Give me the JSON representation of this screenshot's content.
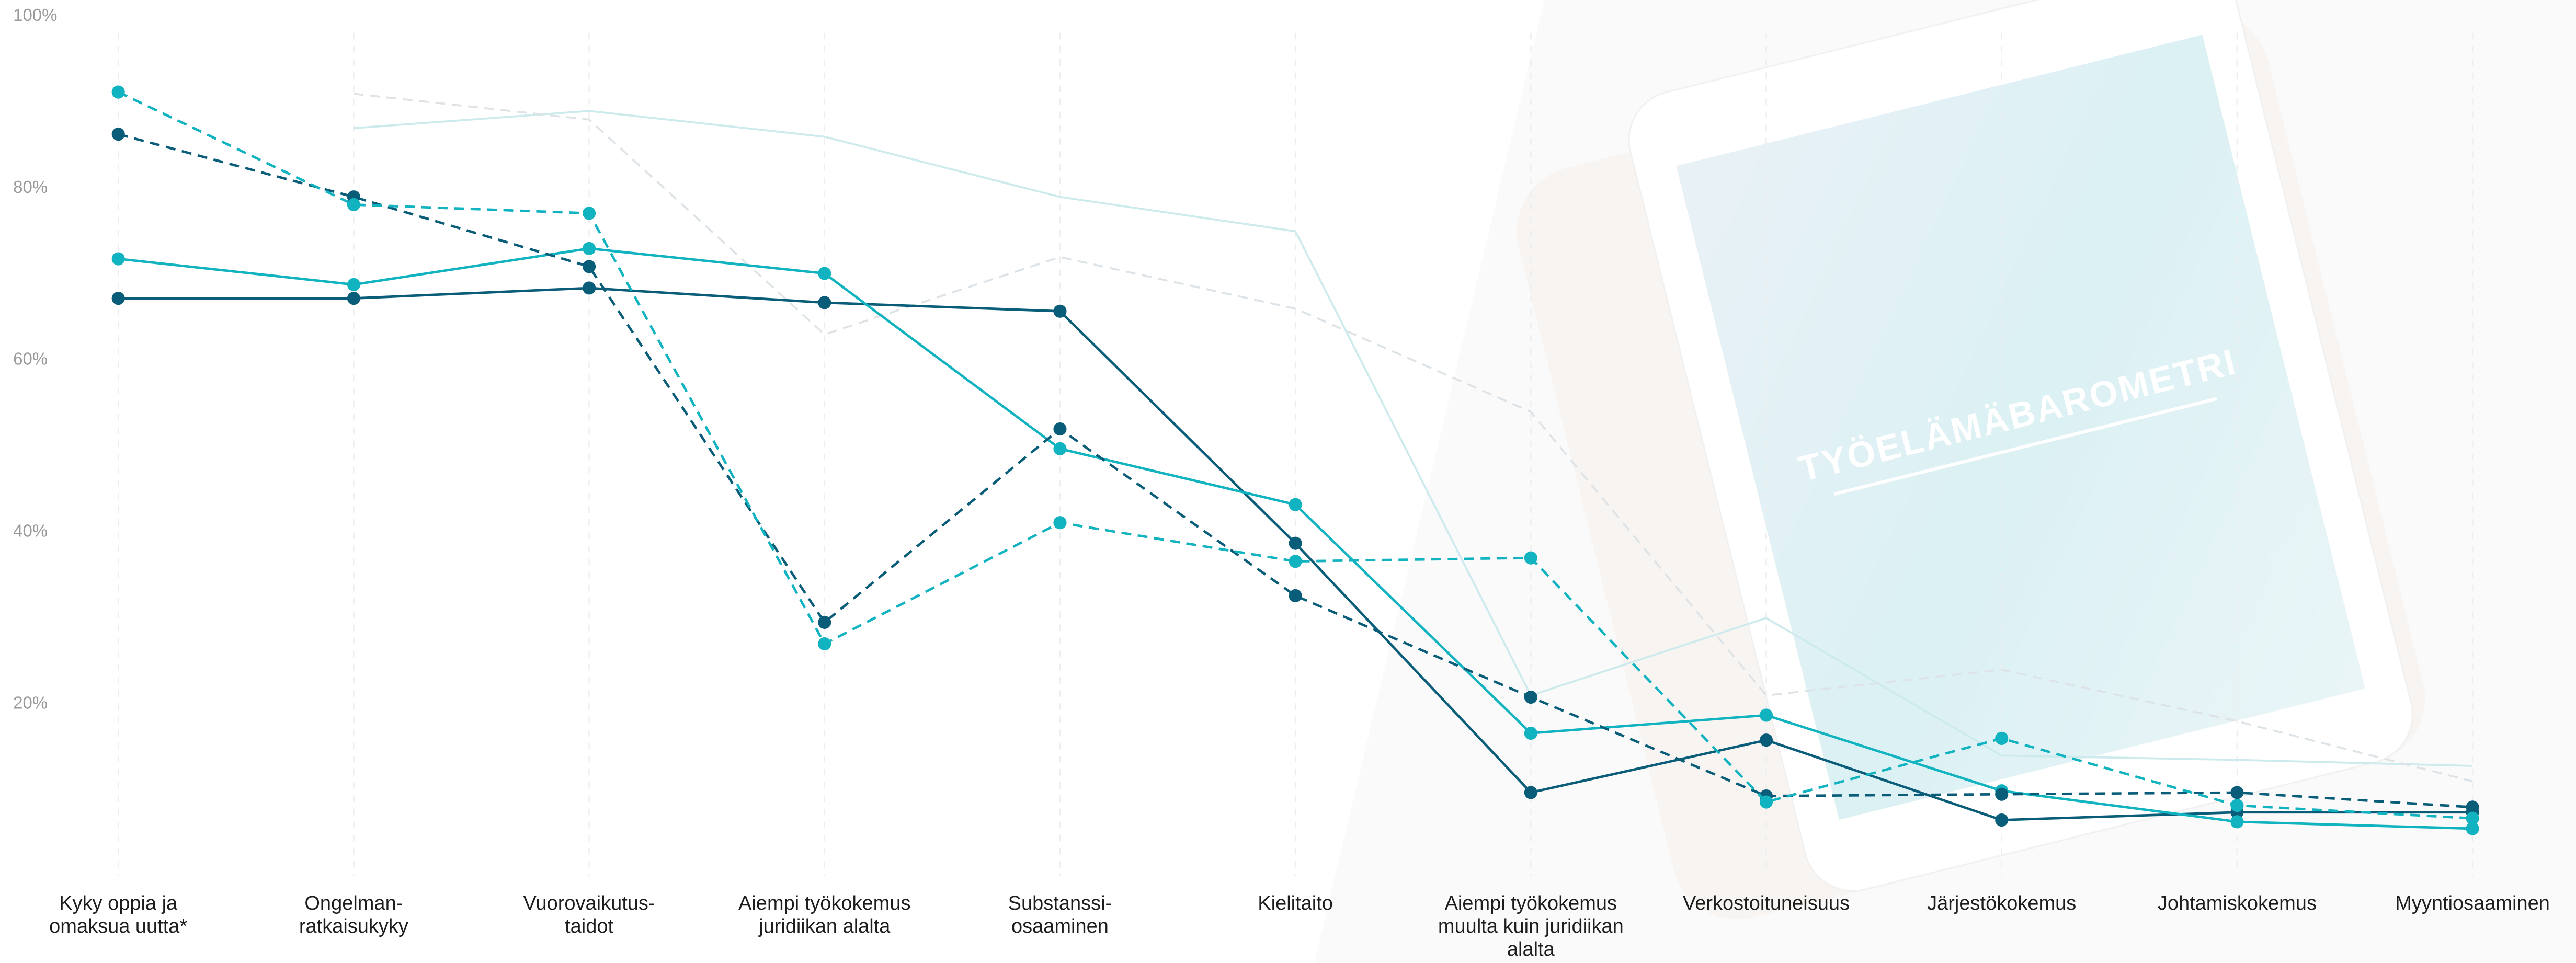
{
  "background_text": "TYÖELÄMÄBAROMETRI",
  "chart_data": {
    "type": "line",
    "categories": [
      "Kyky oppia ja\nomaksua uutta*",
      "Ongelman-\nratkaisukyky",
      "Vuorovaikutus-\ntaidot",
      "Aiempi työkokemus\njuridiikan alalta",
      "Substanssi-\nosaaminen",
      "Kielitaito",
      "Aiempi työkokemus\nmuulta kuin juridiikan\nalalta",
      "Verkostoituneisuus",
      "Järjestökokemus",
      "Johtamiskokemus",
      "Myyntiosaaminen"
    ],
    "ylim": [
      0,
      100
    ],
    "yticks": [
      {
        "value": 20,
        "label": "20%"
      },
      {
        "value": 40,
        "label": "40%"
      },
      {
        "value": 60,
        "label": "60%"
      },
      {
        "value": 80,
        "label": "80%"
      },
      {
        "value": 100,
        "label": "100%"
      }
    ],
    "grid": true,
    "series": [
      {
        "color": "#cdeaec",
        "dashed": false,
        "markers": false,
        "values": [
          null,
          87,
          89,
          86,
          79,
          75,
          21,
          30,
          14,
          13.5,
          12.8
        ]
      },
      {
        "color": "#dde3e6",
        "dashed": true,
        "markers": false,
        "values": [
          null,
          91,
          88,
          63,
          72,
          66,
          54,
          21,
          24,
          18,
          11
        ]
      },
      {
        "color": "#0a5d79",
        "dashed": false,
        "markers": true,
        "values": [
          67.2,
          67.2,
          68.4,
          66.7,
          65.7,
          38.7,
          9.7,
          15.8,
          6.5,
          7.4,
          7.4
        ]
      },
      {
        "color": "#10b3bf",
        "dashed": false,
        "markers": true,
        "values": [
          71.8,
          68.8,
          73,
          70.1,
          49.7,
          43.2,
          16.6,
          18.7,
          9.9,
          6.3,
          5.5
        ]
      },
      {
        "color": "#0a5d79",
        "dashed": true,
        "markers": true,
        "values": [
          86.3,
          79,
          70.9,
          29.5,
          52,
          32.6,
          20.8,
          9.3,
          9.5,
          9.7,
          8
        ]
      },
      {
        "color": "#10b3bf",
        "dashed": true,
        "markers": true,
        "values": [
          91.2,
          78.1,
          77.1,
          27,
          41.1,
          36.6,
          37,
          8.6,
          16,
          8.2,
          6.7
        ]
      }
    ]
  }
}
